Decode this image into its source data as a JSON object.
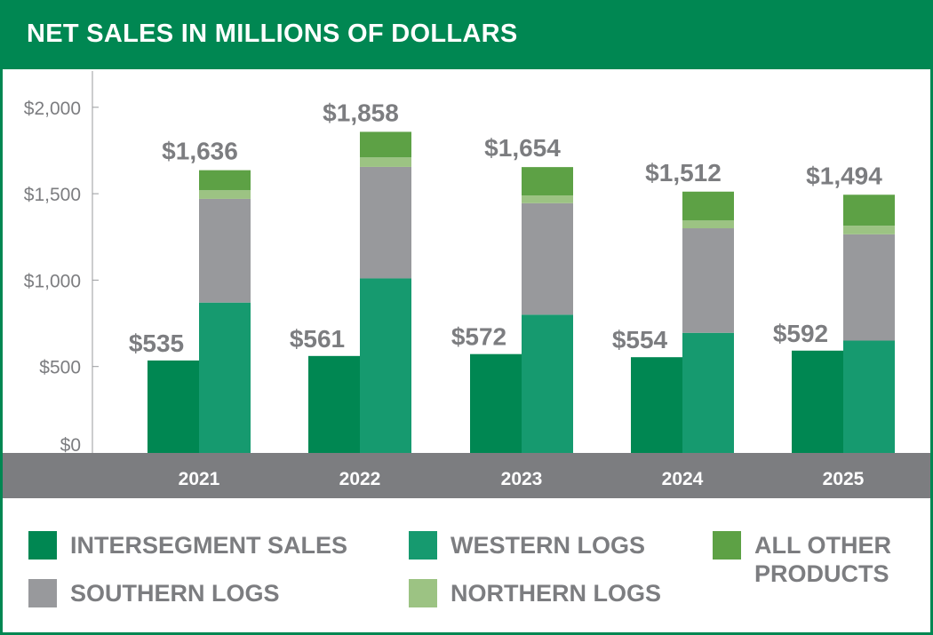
{
  "chart_data": {
    "type": "bar",
    "title": "NET SALES IN MILLIONS OF DOLLARS",
    "categories": [
      "2021",
      "2022",
      "2023",
      "2024",
      "2025"
    ],
    "ylim": [
      0,
      2200
    ],
    "yticks": [
      0,
      500,
      1000,
      1500,
      2000
    ],
    "ytick_labels": [
      "$0",
      "$500",
      "$1,000",
      "$1,500",
      "$2,000"
    ],
    "grid": false,
    "legend_position": "bottom",
    "intersegment": {
      "name": "INTERSEGMENT SALES",
      "color": "#008752",
      "values": [
        535,
        561,
        572,
        554,
        592
      ],
      "labels": [
        "$535",
        "$561",
        "$572",
        "$554",
        "$592"
      ]
    },
    "stacked_series": [
      {
        "name": "WESTERN LOGS",
        "color": "#169a6f",
        "values": [
          870,
          1010,
          800,
          695,
          650
        ]
      },
      {
        "name": "SOUTHERN LOGS",
        "color": "#98999c",
        "values": [
          600,
          645,
          645,
          605,
          615
        ]
      },
      {
        "name": "NORTHERN LOGS",
        "color": "#9cc383",
        "values": [
          50,
          55,
          45,
          45,
          50
        ]
      },
      {
        "name": "ALL OTHER PRODUCTS",
        "color": "#5da145",
        "values": [
          116,
          148,
          164,
          167,
          179
        ]
      }
    ],
    "stack_totals": [
      1636,
      1858,
      1654,
      1512,
      1494
    ],
    "stack_total_labels": [
      "$1,636",
      "$1,858",
      "$1,654",
      "$1,512",
      "$1,494"
    ]
  },
  "legend": [
    {
      "key": "intersegment",
      "label": "INTERSEGMENT SALES",
      "color": "#008752"
    },
    {
      "key": "western",
      "label": "WESTERN LOGS",
      "color": "#169a6f"
    },
    {
      "key": "other",
      "label": "ALL OTHER PRODUCTS",
      "color": "#5da145"
    },
    {
      "key": "southern",
      "label": "SOUTHERN LOGS",
      "color": "#98999c"
    },
    {
      "key": "northern",
      "label": "NORTHERN LOGS",
      "color": "#9cc383"
    }
  ],
  "colors": {
    "header": "#008752",
    "axis_band": "#7c7d80",
    "text": "#7c7d80"
  }
}
